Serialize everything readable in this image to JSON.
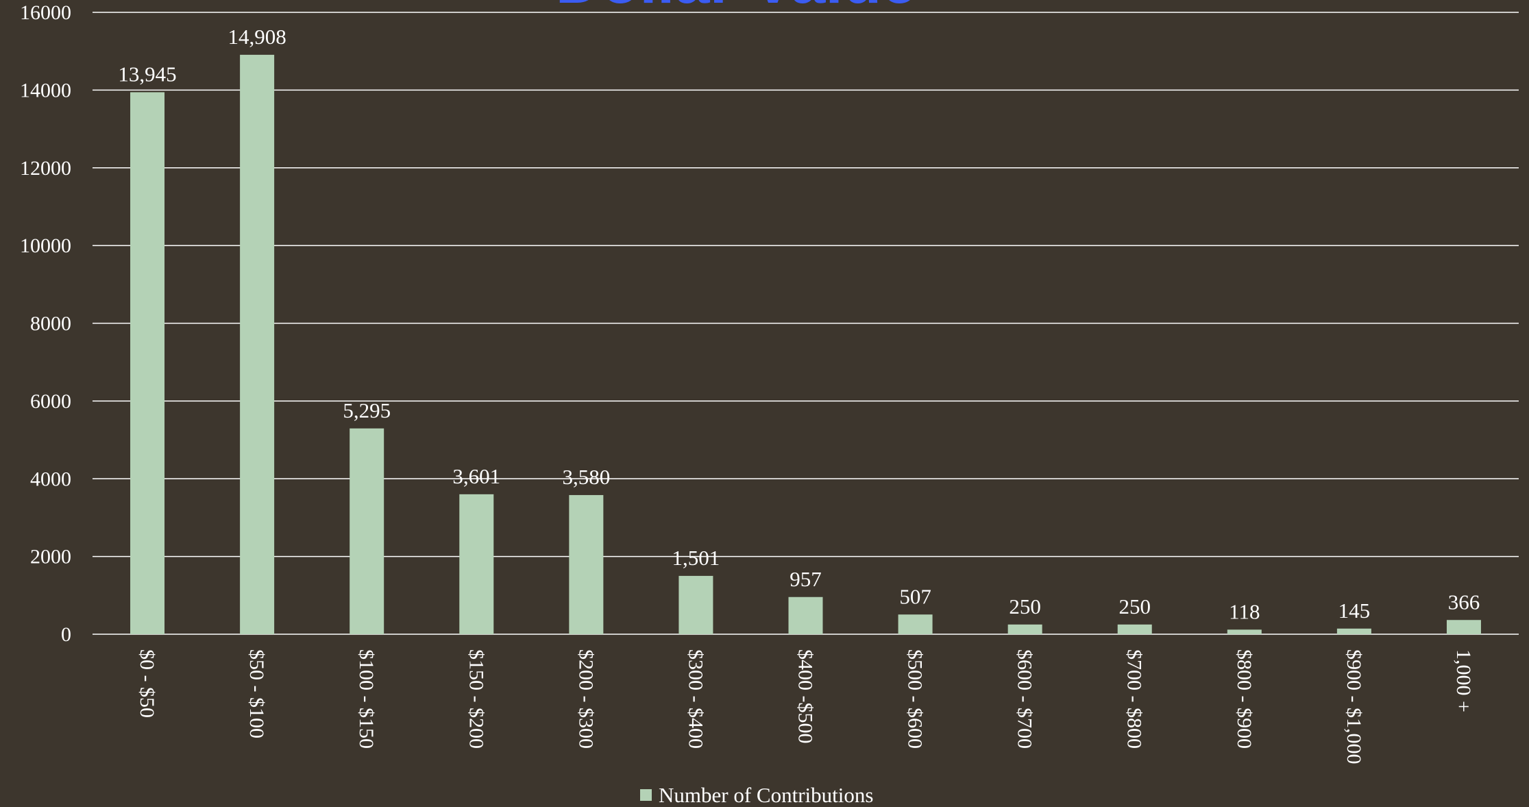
{
  "chart_data": {
    "type": "bar",
    "title": "Dollar Value",
    "xlabel": "",
    "ylabel": "",
    "ylim": [
      0,
      16000
    ],
    "yticks": [
      0,
      2000,
      4000,
      6000,
      8000,
      10000,
      12000,
      14000,
      16000
    ],
    "ytick_labels": [
      "0",
      "2000",
      "4000",
      "6000",
      "8000",
      "10000",
      "12000",
      "14000",
      "16000"
    ],
    "categories": [
      "$0 - $50",
      "$50 - $100",
      "$100 - $150",
      "$150 - $200",
      "$200 - $300",
      "$300 - $400",
      "$400 -$500",
      "$500 - $600",
      "$600 - $700",
      "$700 - $800",
      "$800 - $900",
      "$900 - $1,000",
      "1,000 +"
    ],
    "series": [
      {
        "name": "Number of Contributions",
        "values": [
          13945,
          14908,
          5295,
          3601,
          3580,
          1501,
          957,
          507,
          250,
          250,
          118,
          145,
          366
        ],
        "data_labels": [
          "13,945",
          "14,908",
          "5,295",
          "3,601",
          "3,580",
          "1,501",
          "957",
          "507",
          "250",
          "250",
          "118",
          "145",
          "366"
        ]
      }
    ],
    "grid": true,
    "legend_position": "bottom",
    "colors": {
      "background": "#3d362d",
      "bar": "#b4d2b6",
      "grid": "#ffffff",
      "text": "#ffffff",
      "title": "#3b5cf2"
    }
  }
}
